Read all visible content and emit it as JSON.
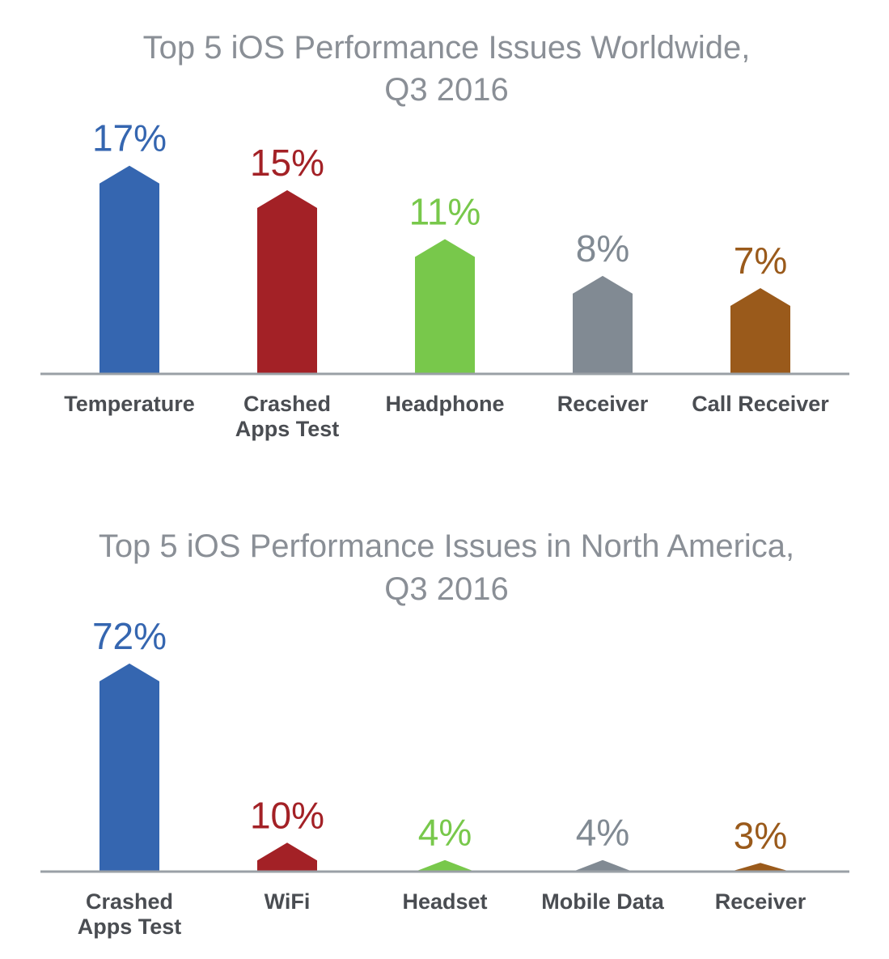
{
  "chart_data": [
    {
      "type": "bar",
      "title": "Top 5 iOS Performance Issues Worldwide,",
      "subtitle": "Q3 2016",
      "categories": [
        [
          "Temperature"
        ],
        [
          "Crashed",
          "Apps Test"
        ],
        [
          "Headphone"
        ],
        [
          "Receiver"
        ],
        [
          "Call Receiver"
        ]
      ],
      "values": [
        17,
        15,
        11,
        8,
        7
      ],
      "value_labels": [
        "17%",
        "15%",
        "11%",
        "8%",
        "7%"
      ],
      "colors": [
        "#3566b0",
        "#a32126",
        "#78c84b",
        "#818a93",
        "#9a5a1b"
      ],
      "unit": "%",
      "ylim": [
        0,
        18.5
      ],
      "grid": false,
      "legend": "none"
    },
    {
      "type": "bar",
      "title": "Top 5 iOS Performance Issues in North America,",
      "subtitle": "Q3 2016",
      "categories": [
        [
          "Crashed",
          "Apps Test"
        ],
        [
          "WiFi"
        ],
        [
          "Headset"
        ],
        [
          "Mobile Data"
        ],
        [
          "Receiver"
        ]
      ],
      "values": [
        72,
        10,
        4,
        4,
        3
      ],
      "value_labels": [
        "72%",
        "10%",
        "4%",
        "4%",
        "3%"
      ],
      "colors": [
        "#3566b0",
        "#a32126",
        "#78c84b",
        "#818a93",
        "#9a5a1b"
      ],
      "unit": "%",
      "ylim": [
        0,
        77
      ],
      "grid": false,
      "legend": "none"
    }
  ]
}
